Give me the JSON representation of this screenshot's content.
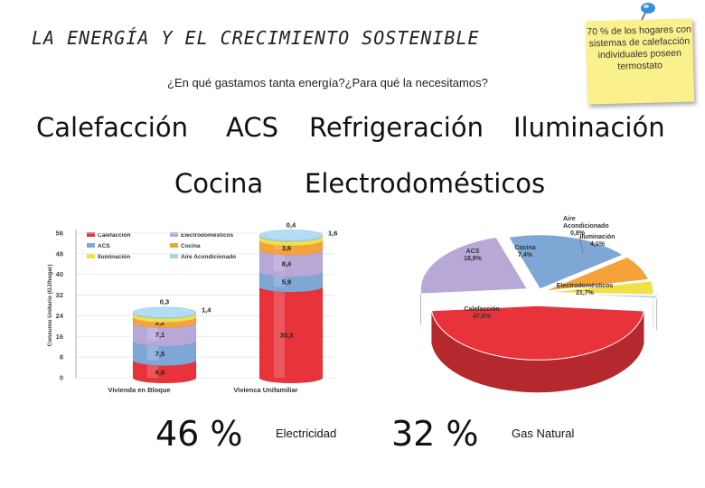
{
  "title": "LA ENERGÍA Y EL CRECIMIENTO SOSTENIBLE",
  "subtitle": "¿En qué gastamos tanta energía?¿Para qué la necesitamos?",
  "note": "70 % de los hogares con sistemas de calefacción individuales poseen termostato",
  "uses": [
    "Calefacción",
    "ACS",
    "Refrigeración",
    "Iluminación",
    "Cocina",
    "Electrodomésticos"
  ],
  "stats": [
    {
      "percent": "46 %",
      "label": "Electricidad"
    },
    {
      "percent": "32 %",
      "label": "Gas Natural"
    }
  ],
  "colors": {
    "calefaccion": "#e8333a",
    "acs": "#7fa7d6",
    "iluminacion": "#f0e04a",
    "electrodomesticos": "#b7a8d8",
    "cocina": "#f6a23a",
    "aire": "#a9d3e8"
  },
  "chart_data": [
    {
      "type": "bar",
      "stacked": true,
      "ylabel": "Consumo Unitario (GJ/hogar)",
      "ylim": [
        0,
        56
      ],
      "yticks": [
        0,
        8,
        16,
        24,
        32,
        40,
        48,
        56
      ],
      "categories": [
        "Vivienda en Bloque",
        "Vivienca Unifamiliar"
      ],
      "legend": [
        "Calefacción",
        "Electrodomésticos",
        "ACS",
        "Cocina",
        "Iluminación",
        "Aire Acondicionado"
      ],
      "series": [
        {
          "name": "Calefacción",
          "values": [
            6.8,
            35.3
          ],
          "labels": [
            "6,8",
            "35,3"
          ]
        },
        {
          "name": "ACS",
          "values": [
            7.5,
            5.9
          ],
          "labels": [
            "7,5",
            "5,9"
          ]
        },
        {
          "name": "Electrodomésticos",
          "values": [
            7.1,
            8.4
          ],
          "labels": [
            "7,1",
            "8,4"
          ]
        },
        {
          "name": "Cocina",
          "values": [
            2.2,
            3.6
          ],
          "labels": [
            "2,2",
            "3,6"
          ]
        },
        {
          "name": "Iluminación",
          "values": [
            1.4,
            1.6
          ],
          "labels": [
            "1,4",
            "1,6"
          ]
        },
        {
          "name": "Aire Acondicionado",
          "values": [
            0.3,
            0.4
          ],
          "labels": [
            "0,3",
            "0,4"
          ]
        }
      ]
    },
    {
      "type": "pie",
      "slices": [
        {
          "name": "Calefacción",
          "value": 47.0,
          "label": "Calefacción 47,0%"
        },
        {
          "name": "Electrodomésticos",
          "value": 21.7,
          "label": "Electrodomésticos 21,7%"
        },
        {
          "name": "ACS",
          "value": 18.9,
          "label": "ACS 18,9%"
        },
        {
          "name": "Cocina",
          "value": 7.4,
          "label": "Cocina 7,4%"
        },
        {
          "name": "Iluminación",
          "value": 4.1,
          "label": "Iluminación 4,1%"
        },
        {
          "name": "Aire Acondicionado",
          "value": 0.8,
          "label": "Aire Acondicionado 0,8%"
        }
      ]
    }
  ]
}
